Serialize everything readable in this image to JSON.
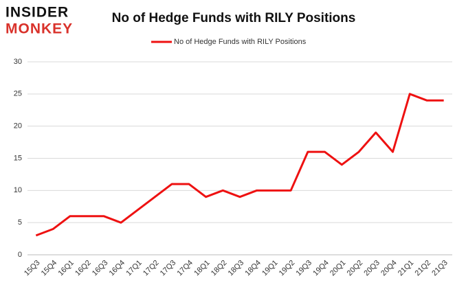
{
  "logo": {
    "top": "INSIDER",
    "bottom": "MONKEY"
  },
  "chart_data": {
    "type": "line",
    "title": "No of Hedge Funds with RILY Positions",
    "categories": [
      "15Q3",
      "15Q4",
      "16Q1",
      "16Q2",
      "16Q3",
      "16Q4",
      "17Q1",
      "17Q2",
      "17Q3",
      "17Q4",
      "18Q1",
      "18Q2",
      "18Q3",
      "18Q4",
      "19Q1",
      "19Q2",
      "19Q3",
      "19Q4",
      "20Q1",
      "20Q2",
      "20Q3",
      "20Q4",
      "21Q1",
      "21Q2",
      "21Q3"
    ],
    "series": [
      {
        "name": "No of Hedge Funds with RILY Positions",
        "color": "#ee1111",
        "values": [
          3,
          4,
          6,
          6,
          6,
          5,
          7,
          9,
          11,
          11,
          9,
          10,
          9,
          10,
          10,
          10,
          16,
          16,
          14,
          16,
          19,
          16,
          25,
          24,
          24
        ]
      }
    ],
    "ylim": [
      0,
      30
    ],
    "yticks": [
      0,
      5,
      10,
      15,
      20,
      25,
      30
    ],
    "grid": true,
    "legend": "top"
  }
}
